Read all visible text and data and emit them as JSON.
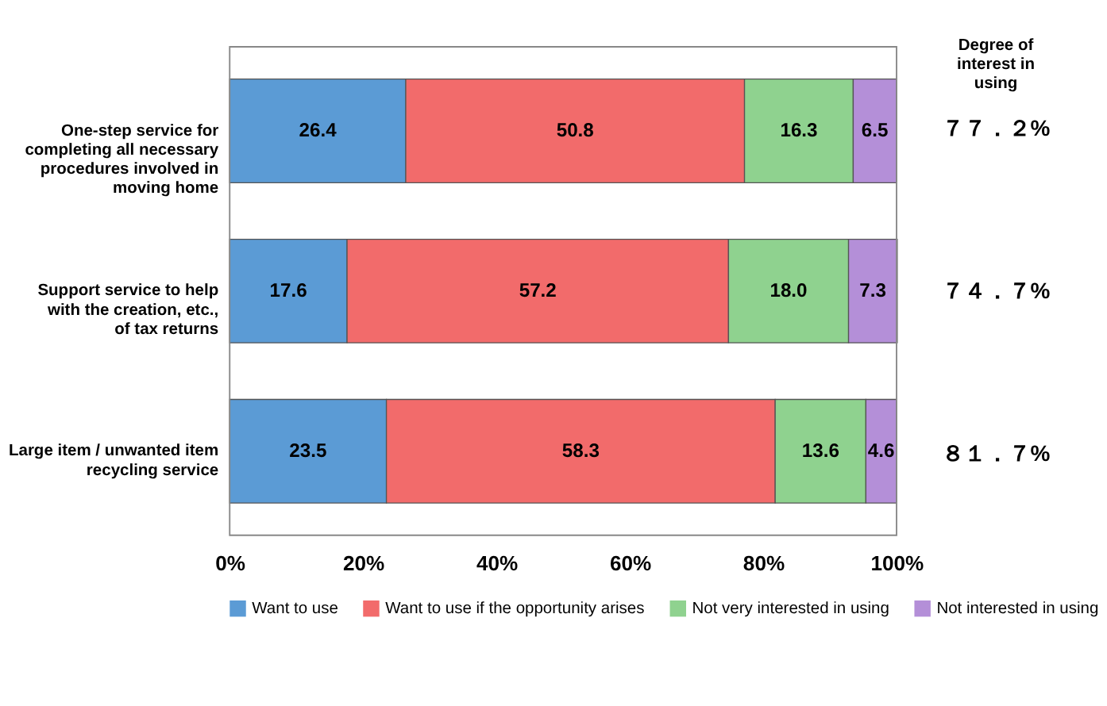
{
  "chart_data": {
    "type": "bar",
    "orientation": "horizontal",
    "stacked": true,
    "grid": false,
    "legend": "bottom",
    "categories": [
      "One-step service for completing all necessary procedures involved in moving home",
      "Support service to help with the creation, etc., of tax returns",
      "Large item / unwanted item recycling service"
    ],
    "series": [
      {
        "name": "Want to use",
        "color": "#5b9bd5",
        "values": [
          26.4,
          17.6,
          23.5
        ],
        "value_labels": [
          "26.4",
          "17.6",
          "23.5"
        ]
      },
      {
        "name": "Want to use if the opportunity arises",
        "color": "#f26b6b",
        "values": [
          50.8,
          57.2,
          58.3
        ],
        "value_labels": [
          "50.8",
          "57.2",
          "58.3"
        ]
      },
      {
        "name": "Not very interested in using",
        "color": "#8fd28f",
        "values": [
          16.3,
          18.0,
          13.6
        ],
        "value_labels": [
          "16.3",
          "18.0",
          "13.6"
        ]
      },
      {
        "name": "Not interested in using",
        "color": "#b48fd8",
        "values": [
          6.5,
          7.3,
          4.6
        ],
        "value_labels": [
          "6.5",
          "7.3",
          "4.6"
        ]
      }
    ],
    "xlim": [
      0,
      100
    ],
    "xticks": [
      {
        "value": 0,
        "label": "0%"
      },
      {
        "value": 20,
        "label": "20%"
      },
      {
        "value": 40,
        "label": "40%"
      },
      {
        "value": 60,
        "label": "60%"
      },
      {
        "value": 80,
        "label": "80%"
      },
      {
        "value": 100,
        "label": "100%"
      }
    ],
    "annotations": [
      "Degree of interest in using",
      "７７．２%",
      "７４．７%",
      "８１．７%"
    ]
  }
}
